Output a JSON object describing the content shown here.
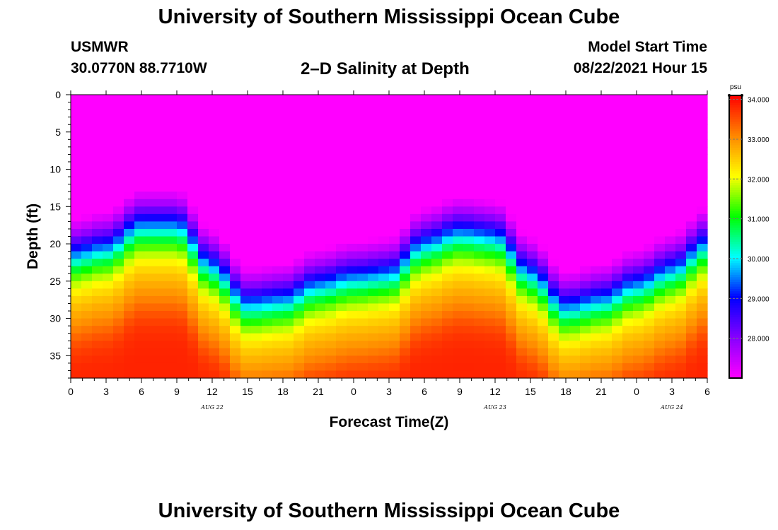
{
  "header": {
    "title": "University of Southern Mississippi Ocean Cube",
    "station": "USMWR",
    "coordinates": "30.0770N  88.7710W",
    "subtitle": "2–D Salinity at Depth",
    "model_start_label": "Model Start Time",
    "model_start_value": "08/22/2021 Hour 15"
  },
  "footer": {
    "title": "University of Southern Mississippi Ocean Cube"
  },
  "chart_data": {
    "type": "heatmap",
    "title": "2–D Salinity at Depth",
    "xlabel": "Forecast Time(Z)",
    "ylabel": "Depth (ft)",
    "x_range_hours": [
      0,
      54
    ],
    "y_range_ft": [
      0,
      38
    ],
    "x_ticks": [
      "0",
      "3",
      "6",
      "9",
      "12",
      "15",
      "18",
      "21",
      "0",
      "3",
      "6",
      "9",
      "12",
      "15",
      "18",
      "21",
      "0",
      "3",
      "6"
    ],
    "y_ticks": [
      0,
      5,
      10,
      15,
      20,
      25,
      30,
      35
    ],
    "date_labels": [
      {
        "label": "AUG  22",
        "hour": 12
      },
      {
        "label": "AUG  23",
        "hour": 36
      },
      {
        "label": "AUG  24",
        "hour": 51
      }
    ],
    "colorbar": {
      "unit": "psu",
      "min": 27.0,
      "max": 34.1,
      "tick_values": [
        34.0,
        33.0,
        32.0,
        31.0,
        30.0,
        29.0,
        28.0
      ],
      "tick_labels": [
        "34.000",
        "33.000",
        "32.000",
        "31.000",
        "30.000",
        "29.000",
        "28.000"
      ],
      "colors": [
        "#ff00ff",
        "#8800ff",
        "#0000ff",
        "#00ffff",
        "#00ff00",
        "#ffff00",
        "#ff8800",
        "#ff0000"
      ]
    },
    "halocline": {
      "description": "depth (ft) of the 30 psu isohaline over forecast hour",
      "hours": [
        0,
        3,
        6,
        9,
        12,
        15,
        18,
        21,
        24,
        27,
        30,
        33,
        36,
        39,
        42,
        45,
        48,
        51,
        54
      ],
      "depth_ft": [
        21.5,
        20.5,
        17.5,
        17.5,
        23,
        28,
        27.5,
        25.5,
        24.5,
        24,
        20,
        18.5,
        19,
        24,
        28.5,
        27.5,
        25.5,
        23.5,
        20
      ]
    },
    "surface_fresh_pockets": [
      {
        "hour": 27,
        "depth_ft": 3,
        "psu": 27.3
      },
      {
        "hour": 51,
        "depth_ft": 3,
        "psu": 27.0
      }
    ]
  }
}
